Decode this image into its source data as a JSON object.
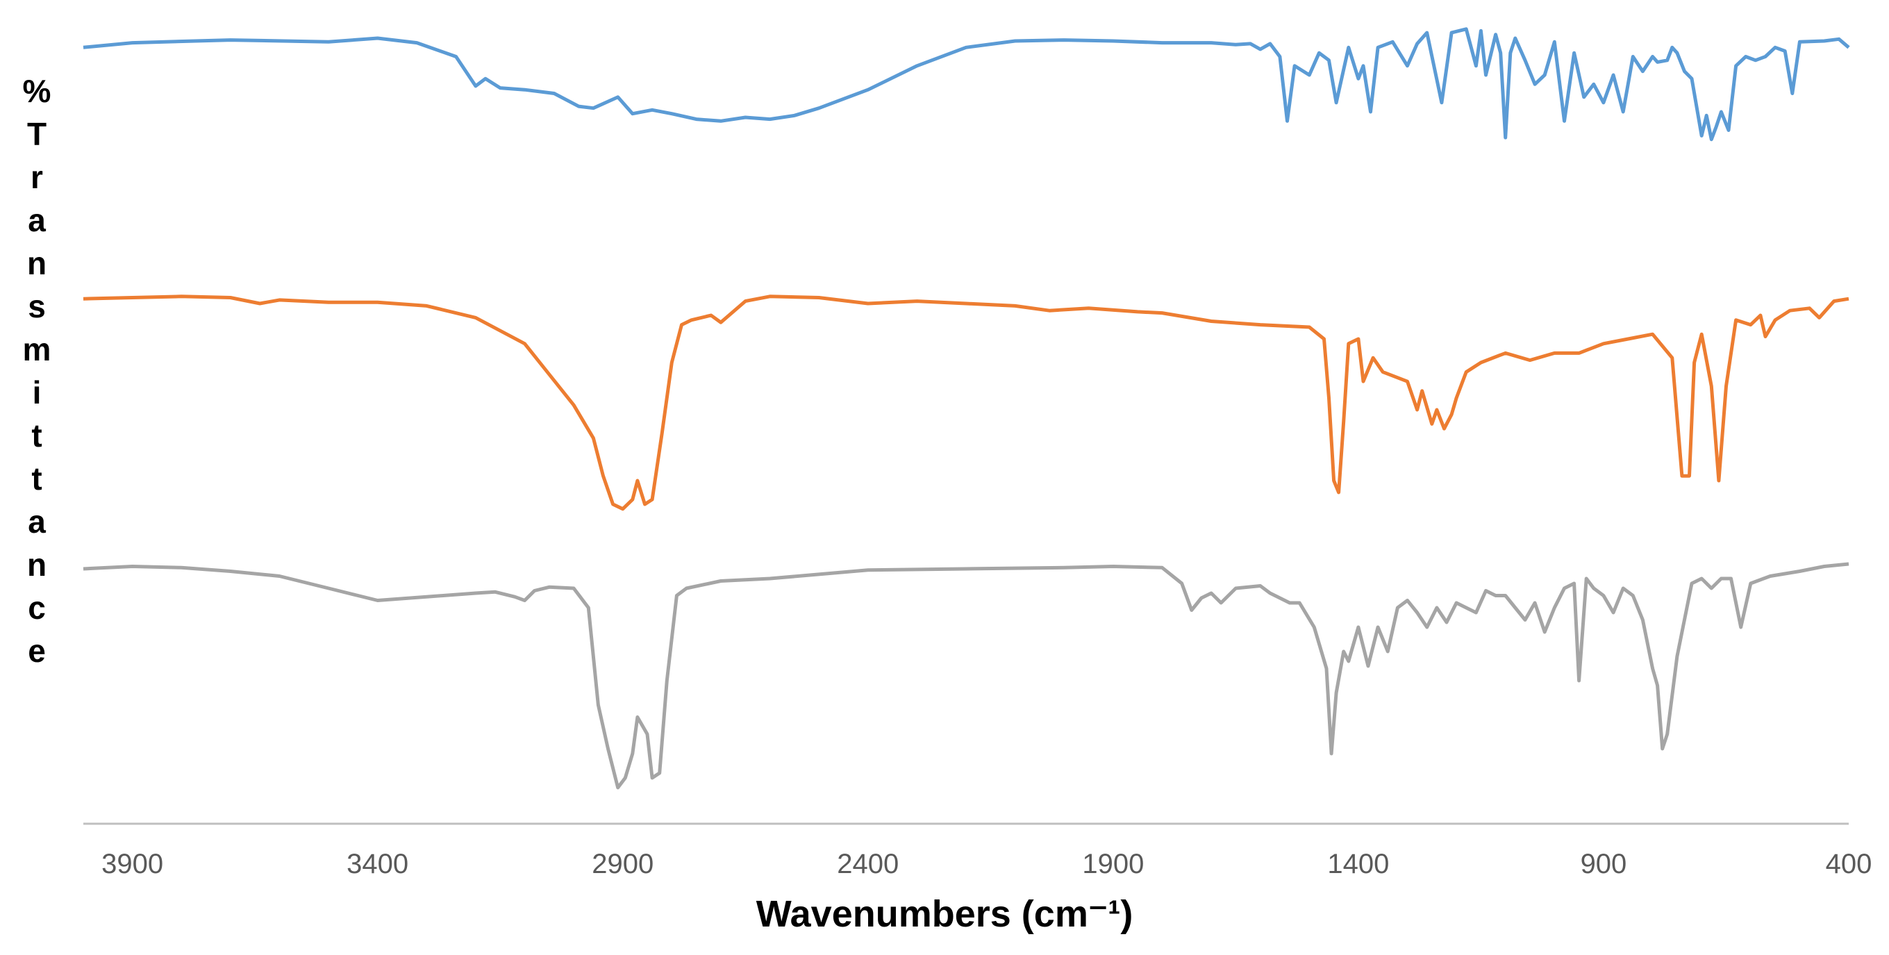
{
  "chart_data": {
    "type": "line",
    "title": "",
    "xlabel": "Wavenumbers (cm⁻¹)",
    "ylabel": "%Transmittance",
    "xlim": [
      4000,
      400
    ],
    "x_reversed": true,
    "x_ticks": [
      3900,
      3400,
      2900,
      2400,
      1900,
      1400,
      900,
      400
    ],
    "y_ticks": [],
    "grid": false,
    "legend": "none",
    "stacked_offset_traces": true,
    "series": [
      {
        "color": "#5B9BD5",
        "points": [
          [
            4000,
            0.95
          ],
          [
            3900,
            0.975
          ],
          [
            3700,
            0.99
          ],
          [
            3500,
            0.98
          ],
          [
            3400,
            1.0
          ],
          [
            3320,
            0.975
          ],
          [
            3240,
            0.9
          ],
          [
            3200,
            0.74
          ],
          [
            3180,
            0.78
          ],
          [
            3150,
            0.73
          ],
          [
            3100,
            0.72
          ],
          [
            3040,
            0.7
          ],
          [
            2990,
            0.63
          ],
          [
            2960,
            0.62
          ],
          [
            2910,
            0.68
          ],
          [
            2880,
            0.59
          ],
          [
            2840,
            0.61
          ],
          [
            2800,
            0.59
          ],
          [
            2750,
            0.56
          ],
          [
            2700,
            0.55
          ],
          [
            2650,
            0.57
          ],
          [
            2600,
            0.56
          ],
          [
            2550,
            0.58
          ],
          [
            2500,
            0.62
          ],
          [
            2400,
            0.72
          ],
          [
            2300,
            0.85
          ],
          [
            2200,
            0.95
          ],
          [
            2100,
            0.985
          ],
          [
            2000,
            0.99
          ],
          [
            1900,
            0.985
          ],
          [
            1800,
            0.975
          ],
          [
            1700,
            0.975
          ],
          [
            1650,
            0.965
          ],
          [
            1620,
            0.97
          ],
          [
            1600,
            0.94
          ],
          [
            1580,
            0.97
          ],
          [
            1560,
            0.9
          ],
          [
            1545,
            0.55
          ],
          [
            1530,
            0.85
          ],
          [
            1500,
            0.8
          ],
          [
            1480,
            0.92
          ],
          [
            1460,
            0.88
          ],
          [
            1445,
            0.65
          ],
          [
            1420,
            0.95
          ],
          [
            1400,
            0.78
          ],
          [
            1390,
            0.85
          ],
          [
            1375,
            0.6
          ],
          [
            1360,
            0.95
          ],
          [
            1330,
            0.98
          ],
          [
            1300,
            0.85
          ],
          [
            1280,
            0.97
          ],
          [
            1260,
            1.03
          ],
          [
            1230,
            0.65
          ],
          [
            1210,
            1.03
          ],
          [
            1180,
            1.05
          ],
          [
            1160,
            0.85
          ],
          [
            1150,
            1.04
          ],
          [
            1140,
            0.8
          ],
          [
            1120,
            1.02
          ],
          [
            1110,
            0.92
          ],
          [
            1100,
            0.46
          ],
          [
            1090,
            0.92
          ],
          [
            1080,
            1.0
          ],
          [
            1060,
            0.88
          ],
          [
            1040,
            0.75
          ],
          [
            1020,
            0.8
          ],
          [
            1000,
            0.98
          ],
          [
            980,
            0.55
          ],
          [
            960,
            0.92
          ],
          [
            940,
            0.68
          ],
          [
            920,
            0.75
          ],
          [
            900,
            0.65
          ],
          [
            880,
            0.8
          ],
          [
            860,
            0.6
          ],
          [
            840,
            0.9
          ],
          [
            820,
            0.82
          ],
          [
            800,
            0.9
          ],
          [
            790,
            0.87
          ],
          [
            770,
            0.88
          ],
          [
            760,
            0.95
          ],
          [
            750,
            0.92
          ],
          [
            735,
            0.82
          ],
          [
            720,
            0.78
          ],
          [
            700,
            0.47
          ],
          [
            690,
            0.58
          ],
          [
            680,
            0.45
          ],
          [
            670,
            0.52
          ],
          [
            660,
            0.6
          ],
          [
            645,
            0.5
          ],
          [
            630,
            0.85
          ],
          [
            610,
            0.9
          ],
          [
            590,
            0.88
          ],
          [
            570,
            0.9
          ],
          [
            550,
            0.95
          ],
          [
            530,
            0.93
          ],
          [
            515,
            0.7
          ],
          [
            500,
            0.98
          ],
          [
            450,
            0.985
          ],
          [
            420,
            0.995
          ],
          [
            400,
            0.95
          ]
        ]
      },
      {
        "color": "#ED7D31",
        "points": [
          [
            4000,
            0.97
          ],
          [
            3900,
            0.975
          ],
          [
            3800,
            0.98
          ],
          [
            3700,
            0.975
          ],
          [
            3640,
            0.95
          ],
          [
            3600,
            0.965
          ],
          [
            3500,
            0.955
          ],
          [
            3400,
            0.955
          ],
          [
            3300,
            0.94
          ],
          [
            3200,
            0.89
          ],
          [
            3100,
            0.78
          ],
          [
            3050,
            0.65
          ],
          [
            3000,
            0.52
          ],
          [
            2960,
            0.38
          ],
          [
            2940,
            0.22
          ],
          [
            2920,
            0.1
          ],
          [
            2900,
            0.08
          ],
          [
            2880,
            0.12
          ],
          [
            2870,
            0.2
          ],
          [
            2855,
            0.1
          ],
          [
            2840,
            0.12
          ],
          [
            2820,
            0.4
          ],
          [
            2800,
            0.7
          ],
          [
            2780,
            0.86
          ],
          [
            2760,
            0.88
          ],
          [
            2720,
            0.9
          ],
          [
            2700,
            0.87
          ],
          [
            2650,
            0.96
          ],
          [
            2600,
            0.98
          ],
          [
            2500,
            0.975
          ],
          [
            2400,
            0.95
          ],
          [
            2300,
            0.96
          ],
          [
            2200,
            0.95
          ],
          [
            2100,
            0.94
          ],
          [
            2030,
            0.92
          ],
          [
            1950,
            0.93
          ],
          [
            1850,
            0.915
          ],
          [
            1800,
            0.91
          ],
          [
            1700,
            0.875
          ],
          [
            1600,
            0.86
          ],
          [
            1500,
            0.85
          ],
          [
            1470,
            0.8
          ],
          [
            1460,
            0.55
          ],
          [
            1450,
            0.2
          ],
          [
            1440,
            0.15
          ],
          [
            1430,
            0.45
          ],
          [
            1420,
            0.78
          ],
          [
            1400,
            0.8
          ],
          [
            1390,
            0.62
          ],
          [
            1370,
            0.72
          ],
          [
            1350,
            0.66
          ],
          [
            1300,
            0.62
          ],
          [
            1280,
            0.5
          ],
          [
            1270,
            0.58
          ],
          [
            1250,
            0.44
          ],
          [
            1240,
            0.5
          ],
          [
            1225,
            0.42
          ],
          [
            1210,
            0.48
          ],
          [
            1200,
            0.55
          ],
          [
            1180,
            0.66
          ],
          [
            1150,
            0.7
          ],
          [
            1100,
            0.74
          ],
          [
            1050,
            0.71
          ],
          [
            1000,
            0.74
          ],
          [
            950,
            0.74
          ],
          [
            900,
            0.78
          ],
          [
            850,
            0.8
          ],
          [
            800,
            0.82
          ],
          [
            760,
            0.72
          ],
          [
            740,
            0.22
          ],
          [
            725,
            0.22
          ],
          [
            715,
            0.7
          ],
          [
            700,
            0.82
          ],
          [
            680,
            0.6
          ],
          [
            665,
            0.2
          ],
          [
            650,
            0.6
          ],
          [
            630,
            0.88
          ],
          [
            600,
            0.86
          ],
          [
            580,
            0.9
          ],
          [
            570,
            0.81
          ],
          [
            550,
            0.88
          ],
          [
            520,
            0.92
          ],
          [
            480,
            0.93
          ],
          [
            460,
            0.89
          ],
          [
            430,
            0.96
          ],
          [
            400,
            0.97
          ]
        ]
      },
      {
        "color": "#A5A5A5",
        "points": [
          [
            4000,
            0.96
          ],
          [
            3900,
            0.97
          ],
          [
            3800,
            0.965
          ],
          [
            3700,
            0.95
          ],
          [
            3600,
            0.93
          ],
          [
            3500,
            0.88
          ],
          [
            3440,
            0.85
          ],
          [
            3400,
            0.83
          ],
          [
            3300,
            0.845
          ],
          [
            3200,
            0.86
          ],
          [
            3160,
            0.865
          ],
          [
            3120,
            0.845
          ],
          [
            3100,
            0.83
          ],
          [
            3080,
            0.87
          ],
          [
            3050,
            0.885
          ],
          [
            3000,
            0.88
          ],
          [
            2970,
            0.8
          ],
          [
            2950,
            0.4
          ],
          [
            2930,
            0.22
          ],
          [
            2910,
            0.06
          ],
          [
            2895,
            0.1
          ],
          [
            2880,
            0.2
          ],
          [
            2870,
            0.35
          ],
          [
            2850,
            0.28
          ],
          [
            2840,
            0.1
          ],
          [
            2825,
            0.12
          ],
          [
            2810,
            0.5
          ],
          [
            2790,
            0.85
          ],
          [
            2770,
            0.88
          ],
          [
            2700,
            0.91
          ],
          [
            2600,
            0.92
          ],
          [
            2400,
            0.955
          ],
          [
            2200,
            0.96
          ],
          [
            2000,
            0.965
          ],
          [
            1900,
            0.97
          ],
          [
            1800,
            0.965
          ],
          [
            1760,
            0.9
          ],
          [
            1740,
            0.79
          ],
          [
            1720,
            0.84
          ],
          [
            1700,
            0.86
          ],
          [
            1680,
            0.82
          ],
          [
            1650,
            0.88
          ],
          [
            1600,
            0.89
          ],
          [
            1580,
            0.86
          ],
          [
            1540,
            0.82
          ],
          [
            1520,
            0.82
          ],
          [
            1490,
            0.72
          ],
          [
            1465,
            0.55
          ],
          [
            1455,
            0.2
          ],
          [
            1445,
            0.45
          ],
          [
            1430,
            0.62
          ],
          [
            1420,
            0.58
          ],
          [
            1400,
            0.72
          ],
          [
            1380,
            0.56
          ],
          [
            1360,
            0.72
          ],
          [
            1340,
            0.62
          ],
          [
            1320,
            0.8
          ],
          [
            1300,
            0.83
          ],
          [
            1280,
            0.78
          ],
          [
            1260,
            0.72
          ],
          [
            1240,
            0.8
          ],
          [
            1220,
            0.74
          ],
          [
            1200,
            0.82
          ],
          [
            1180,
            0.8
          ],
          [
            1160,
            0.78
          ],
          [
            1140,
            0.87
          ],
          [
            1120,
            0.85
          ],
          [
            1100,
            0.85
          ],
          [
            1080,
            0.8
          ],
          [
            1060,
            0.75
          ],
          [
            1040,
            0.82
          ],
          [
            1020,
            0.7
          ],
          [
            1000,
            0.8
          ],
          [
            980,
            0.88
          ],
          [
            960,
            0.9
          ],
          [
            950,
            0.5
          ],
          [
            935,
            0.92
          ],
          [
            920,
            0.88
          ],
          [
            900,
            0.85
          ],
          [
            880,
            0.78
          ],
          [
            860,
            0.88
          ],
          [
            840,
            0.85
          ],
          [
            820,
            0.75
          ],
          [
            800,
            0.55
          ],
          [
            790,
            0.48
          ],
          [
            780,
            0.22
          ],
          [
            770,
            0.28
          ],
          [
            750,
            0.6
          ],
          [
            720,
            0.9
          ],
          [
            700,
            0.92
          ],
          [
            680,
            0.88
          ],
          [
            660,
            0.92
          ],
          [
            640,
            0.92
          ],
          [
            620,
            0.72
          ],
          [
            600,
            0.9
          ],
          [
            560,
            0.93
          ],
          [
            500,
            0.95
          ],
          [
            450,
            0.97
          ],
          [
            400,
            0.98
          ]
        ]
      }
    ]
  }
}
